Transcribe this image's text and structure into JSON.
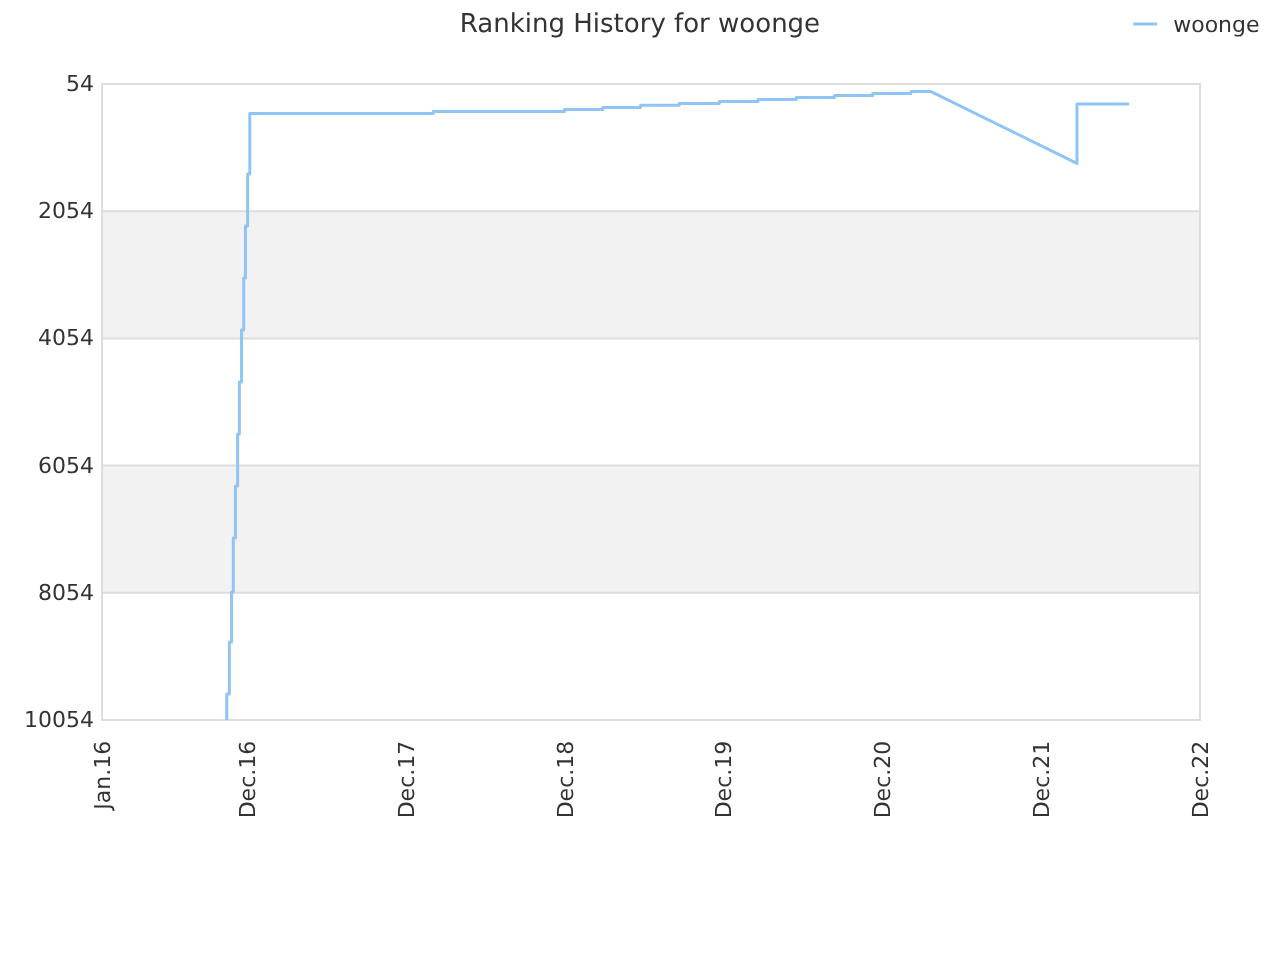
{
  "chart_data": {
    "type": "line",
    "title": "Ranking History for woonge",
    "x": [
      "2016-10-14",
      "2016-10-14",
      "2016-10-20",
      "2016-10-20",
      "2016-10-25",
      "2016-10-25",
      "2016-10-29",
      "2016-10-29",
      "2016-11-03",
      "2016-11-03",
      "2016-11-08",
      "2016-11-08",
      "2016-11-12",
      "2016-11-12",
      "2016-11-17",
      "2016-11-17",
      "2016-11-22",
      "2016-11-22",
      "2016-11-26",
      "2016-11-26",
      "2016-12-01",
      "2016-12-01",
      "2016-12-06",
      "2016-12-06",
      "2018-02-01",
      "2018-02-01",
      "2018-11-30",
      "2018-11-30",
      "2019-02-26",
      "2019-02-26",
      "2019-05-24",
      "2019-05-24",
      "2019-08-21",
      "2019-08-21",
      "2019-11-21",
      "2019-11-21",
      "2020-02-18",
      "2020-02-18",
      "2020-05-16",
      "2020-05-16",
      "2020-08-12",
      "2020-08-12",
      "2020-11-08",
      "2020-11-08",
      "2021-02-04",
      "2021-02-04",
      "2021-03-21",
      "2022-02-21",
      "2022-02-21",
      "2022-06-21"
    ],
    "series": [
      {
        "name": "woonge",
        "color": "#90c4f5",
        "values": [
          10054,
          9645,
          9645,
          8828,
          8828,
          8041,
          8041,
          7192,
          7192,
          6375,
          6375,
          5557,
          5557,
          4740,
          4740,
          3922,
          3922,
          3104,
          3104,
          2287,
          2287,
          1469,
          1469,
          516,
          516,
          485,
          485,
          453,
          453,
          422,
          422,
          390,
          390,
          359,
          359,
          328,
          328,
          296,
          296,
          265,
          265,
          233,
          233,
          202,
          202,
          170,
          170,
          1302,
          368,
          368
        ]
      }
    ],
    "xlim": [
      "2016-01-01",
      "2022-12-01"
    ],
    "xticks": [
      {
        "value": "2016-01-01",
        "label": "Jan.16"
      },
      {
        "value": "2016-12-01",
        "label": "Dec.16"
      },
      {
        "value": "2017-12-01",
        "label": "Dec.17"
      },
      {
        "value": "2018-12-01",
        "label": "Dec.18"
      },
      {
        "value": "2019-12-01",
        "label": "Dec.19"
      },
      {
        "value": "2020-12-01",
        "label": "Dec.20"
      },
      {
        "value": "2021-12-01",
        "label": "Dec.21"
      },
      {
        "value": "2022-12-01",
        "label": "Dec.22"
      }
    ],
    "ylim": [
      10054,
      54
    ],
    "yticks": [
      54,
      2054,
      4054,
      6054,
      8054,
      10054
    ],
    "bands": [
      {
        "axis": "y",
        "from": 2054,
        "to": 4054,
        "color": "#f2f2f2"
      },
      {
        "axis": "y",
        "from": 6054,
        "to": 8054,
        "color": "#f2f2f2"
      }
    ],
    "grid": "y",
    "legend": "top right",
    "marker": "none",
    "line_style": "solid"
  }
}
